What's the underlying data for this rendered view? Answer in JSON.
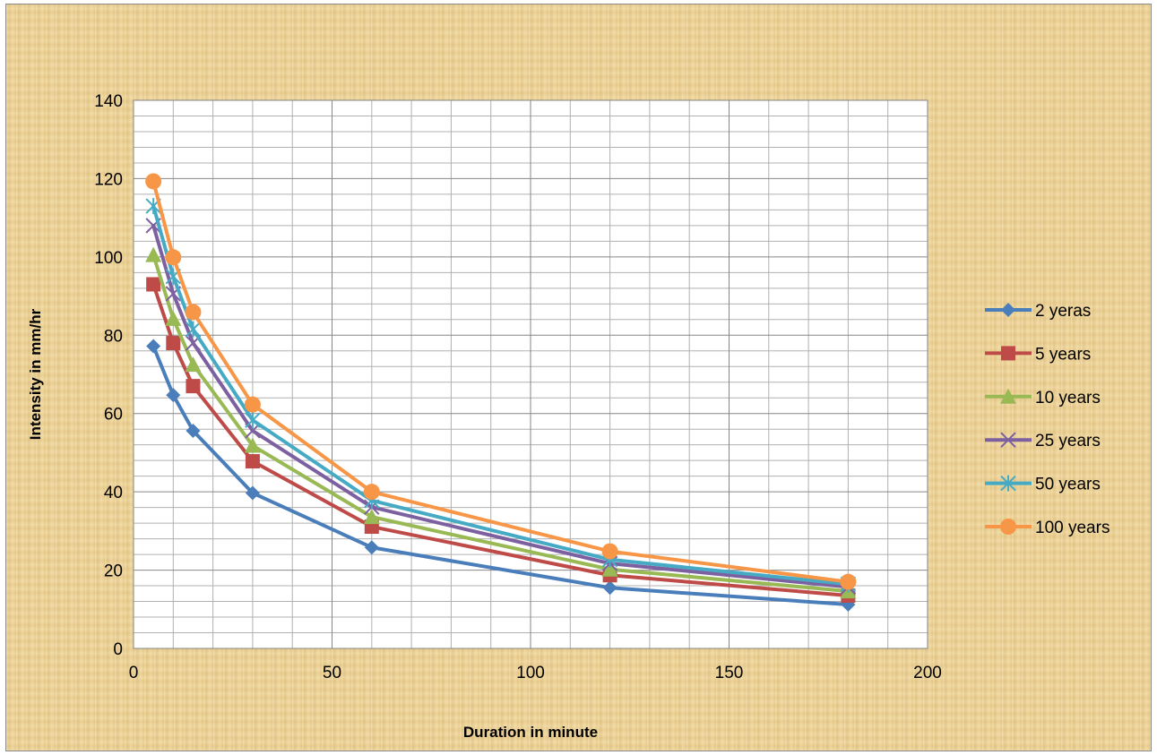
{
  "chart_data": {
    "type": "line",
    "title": "",
    "xlabel": "Duration in minute",
    "ylabel": "Intensity in mm/hr",
    "xlim": [
      0,
      200
    ],
    "ylim": [
      0,
      140
    ],
    "x_ticks": [
      "0",
      "50",
      "100",
      "150",
      "200"
    ],
    "y_ticks": [
      "0",
      "20",
      "40",
      "60",
      "80",
      "100",
      "120",
      "140"
    ],
    "grid": true,
    "legend_position": "right",
    "x": [
      5,
      10,
      15,
      30,
      60,
      120,
      180
    ],
    "series": [
      {
        "name": "2 yeras",
        "color": "#4a7ebb",
        "marker": "diamond",
        "values": [
          77.2,
          64.7,
          55.6,
          39.7,
          25.8,
          15.5,
          11.2
        ]
      },
      {
        "name": "5 years",
        "color": "#be4b48",
        "marker": "square",
        "values": [
          93.0,
          78.0,
          67.0,
          47.8,
          31.1,
          18.7,
          13.5
        ]
      },
      {
        "name": "10 years",
        "color": "#98b954",
        "marker": "triangle",
        "values": [
          100.5,
          84.2,
          72.5,
          51.8,
          33.6,
          20.2,
          14.6
        ]
      },
      {
        "name": "25 years",
        "color": "#7d60a0",
        "marker": "x",
        "values": [
          108.0,
          90.6,
          78.0,
          55.6,
          36.1,
          21.7,
          15.7
        ]
      },
      {
        "name": "50 years",
        "color": "#46aac5",
        "marker": "star",
        "values": [
          113.0,
          95.0,
          81.5,
          58.3,
          37.8,
          22.7,
          16.4
        ]
      },
      {
        "name": "100 years",
        "color": "#f79646",
        "marker": "circle",
        "values": [
          119.3,
          99.9,
          85.9,
          62.3,
          40.0,
          24.8,
          17.0
        ]
      }
    ]
  }
}
